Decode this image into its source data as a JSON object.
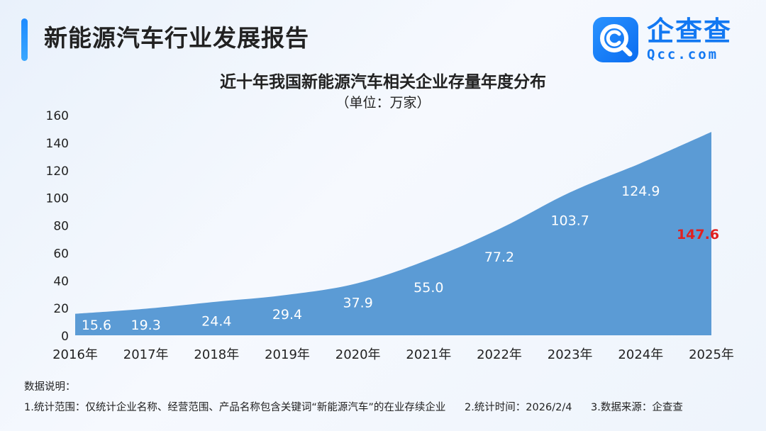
{
  "header": {
    "title": "新能源汽车行业发展报告"
  },
  "logo": {
    "name": "企查查",
    "domain": "Qcc.com",
    "color": "#1278f2"
  },
  "chart_data": {
    "type": "area",
    "title": "近十年我国新能源汽车相关企业存量年度分布",
    "unit": "（单位：万家）",
    "x": [
      "2016年",
      "2017年",
      "2018年",
      "2019年",
      "2020年",
      "2021年",
      "2022年",
      "2023年",
      "2024年",
      "2025年"
    ],
    "values": [
      15.6,
      19.3,
      24.4,
      29.4,
      37.9,
      55.0,
      77.2,
      103.7,
      124.9,
      147.6
    ],
    "value_labels": [
      "15.6",
      "19.3",
      "24.4",
      "29.4",
      "37.9",
      "55.0",
      "77.2",
      "103.7",
      "124.9",
      "147.6"
    ],
    "highlight_last": true,
    "ylim": [
      0,
      160
    ],
    "yticks": [
      0,
      20,
      40,
      60,
      80,
      100,
      120,
      140,
      160
    ],
    "grid": false,
    "fill_color": "#5b9bd5",
    "label_color": "#ffffff",
    "highlight_color": "#e02020"
  },
  "notes": {
    "heading": "数据说明：",
    "items": [
      "1.统计范围：仅统计企业名称、经营范围、产品名称包含关键词“新能源汽车”的在业存续企业",
      "2.统计时间：2026/2/4",
      "3.数据来源：企查查"
    ]
  }
}
